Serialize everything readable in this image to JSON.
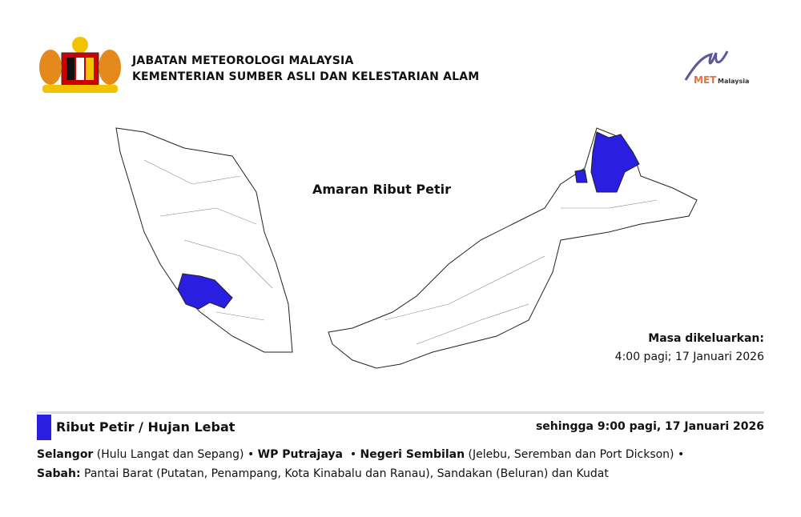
{
  "header": {
    "org": "JABATAN METEOROLOGI MALAYSIA",
    "ministry": "KEMENTERIAN SUMBER ASLI DAN KELESTARIAN ALAM",
    "logo_text": "METMalaysia"
  },
  "map": {
    "title": "Amaran Ribut Petir",
    "highlight_color": "#2a1ee0",
    "highlighted": [
      "Selangor",
      "WP Putrajaya",
      "Negeri Sembilan",
      "Sabah"
    ]
  },
  "issued": {
    "label": "Masa dikeluarkan:",
    "time": "4:00 pagi; 17 Januari 2026"
  },
  "warning": {
    "type": "Ribut Petir / Hujan Lebat",
    "until": "sehingga 9:00 pagi, 17 Januari 2026",
    "areas": [
      {
        "state": "Selangor",
        "detail": " (Hulu Langat dan Sepang) • "
      },
      {
        "state": "WP Putrajaya",
        "detail": "  • "
      },
      {
        "state": "Negeri Sembilan",
        "detail": " (Jelebu, Seremban dan Port Dickson) • "
      },
      {
        "state": "Sabah:",
        "detail": " Pantai Barat (Putatan, Penampang, Kota Kinabalu dan Ranau), Sandakan (Beluran) dan Kudat"
      }
    ]
  }
}
